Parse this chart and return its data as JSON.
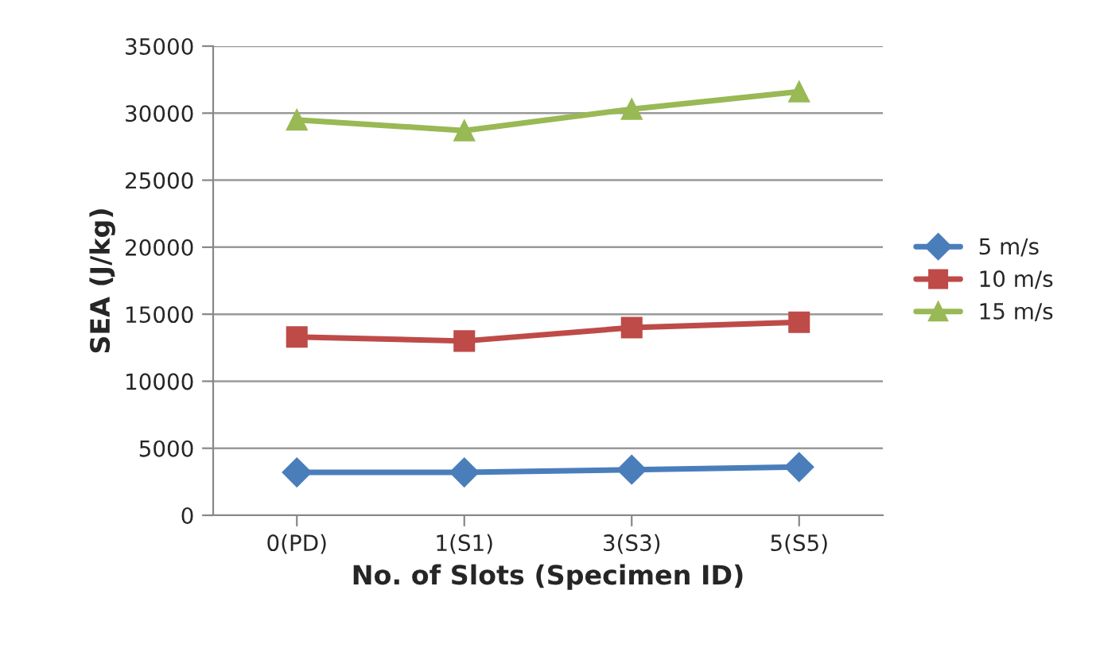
{
  "chart_data": {
    "type": "line",
    "xlabel": "No. of Slots (Specimen ID)",
    "ylabel": "SEA (J/kg)",
    "categories": [
      "0(PD)",
      "1(S1)",
      "3(S3)",
      "5(S5)"
    ],
    "series": [
      {
        "name": "5 m/s",
        "color": "#4a7ebb",
        "marker": "diamond",
        "values": [
          3200,
          3200,
          3400,
          3600
        ]
      },
      {
        "name": "10 m/s",
        "color": "#be4b48",
        "marker": "square",
        "values": [
          13300,
          13000,
          14000,
          14400
        ]
      },
      {
        "name": "15 m/s",
        "color": "#98b954",
        "marker": "triangle",
        "values": [
          29500,
          28700,
          30300,
          31600
        ]
      }
    ],
    "ylim": [
      0,
      35000
    ],
    "yticks": [
      0,
      5000,
      10000,
      15000,
      20000,
      25000,
      30000,
      35000
    ],
    "grid": "y",
    "legend": "right",
    "line_style": "solid"
  }
}
